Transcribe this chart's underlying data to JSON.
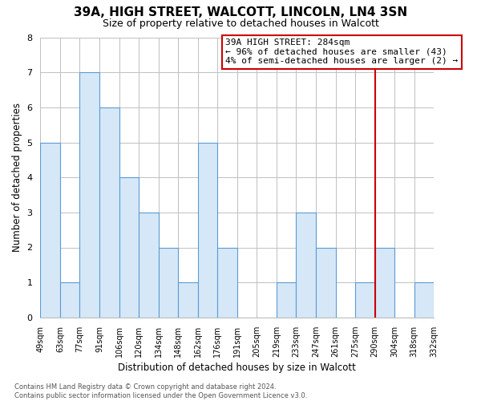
{
  "title": "39A, HIGH STREET, WALCOTT, LINCOLN, LN4 3SN",
  "subtitle": "Size of property relative to detached houses in Walcott",
  "xlabel": "Distribution of detached houses by size in Walcott",
  "ylabel": "Number of detached properties",
  "bin_labels": [
    "49sqm",
    "63sqm",
    "77sqm",
    "91sqm",
    "106sqm",
    "120sqm",
    "134sqm",
    "148sqm",
    "162sqm",
    "176sqm",
    "191sqm",
    "205sqm",
    "219sqm",
    "233sqm",
    "247sqm",
    "261sqm",
    "275sqm",
    "290sqm",
    "304sqm",
    "318sqm",
    "332sqm"
  ],
  "bar_heights": [
    5,
    1,
    7,
    6,
    4,
    3,
    2,
    1,
    5,
    2,
    0,
    0,
    1,
    3,
    2,
    0,
    1,
    2,
    0,
    1,
    0
  ],
  "bar_color": "#d6e8f7",
  "bar_edge_color": "#5b9bd5",
  "ylim": [
    0,
    8
  ],
  "yticks": [
    0,
    1,
    2,
    3,
    4,
    5,
    6,
    7,
    8
  ],
  "vline_x_index": 17,
  "vline_color": "#cc0000",
  "annotation_text": "39A HIGH STREET: 284sqm\n← 96% of detached houses are smaller (43)\n4% of semi-detached houses are larger (2) →",
  "annotation_box_color": "#cc0000",
  "footer_line1": "Contains HM Land Registry data © Crown copyright and database right 2024.",
  "footer_line2": "Contains public sector information licensed under the Open Government Licence v3.0.",
  "background_color": "#ffffff",
  "grid_color": "#c0c0c0"
}
